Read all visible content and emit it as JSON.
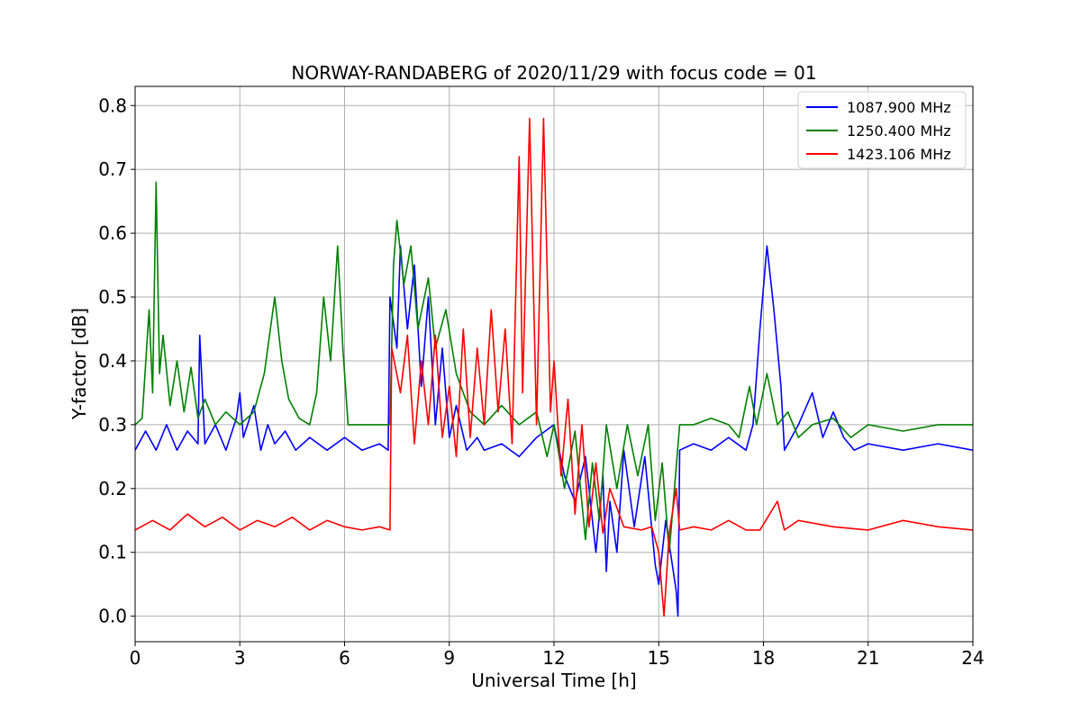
{
  "chart_data": {
    "type": "line",
    "title": "NORWAY-RANDABERG of 2020/11/29 with focus code = 01",
    "xlabel": "Universal Time [h]",
    "ylabel": "Y-factor [dB]",
    "xlim": [
      0,
      24
    ],
    "ylim": [
      -0.04,
      0.83
    ],
    "xticks": [
      0,
      3,
      6,
      9,
      12,
      15,
      18,
      21,
      24
    ],
    "yticks": [
      0.0,
      0.1,
      0.2,
      0.3,
      0.4,
      0.5,
      0.6,
      0.7,
      0.8
    ],
    "ytick_labels": [
      "0.0",
      "0.1",
      "0.2",
      "0.3",
      "0.4",
      "0.5",
      "0.6",
      "0.7",
      "0.8"
    ],
    "grid": true,
    "legend_position": "top-right",
    "series": [
      {
        "name": "1087.900 MHz",
        "color": "#0000ff",
        "points": [
          [
            0.0,
            0.26
          ],
          [
            0.3,
            0.29
          ],
          [
            0.6,
            0.26
          ],
          [
            0.9,
            0.3
          ],
          [
            1.2,
            0.26
          ],
          [
            1.5,
            0.29
          ],
          [
            1.8,
            0.27
          ],
          [
            1.85,
            0.44
          ],
          [
            2.0,
            0.27
          ],
          [
            2.3,
            0.3
          ],
          [
            2.6,
            0.26
          ],
          [
            2.9,
            0.31
          ],
          [
            3.0,
            0.35
          ],
          [
            3.1,
            0.28
          ],
          [
            3.4,
            0.33
          ],
          [
            3.6,
            0.26
          ],
          [
            3.8,
            0.3
          ],
          [
            4.0,
            0.27
          ],
          [
            4.3,
            0.29
          ],
          [
            4.6,
            0.26
          ],
          [
            5.0,
            0.28
          ],
          [
            5.5,
            0.26
          ],
          [
            6.0,
            0.28
          ],
          [
            6.5,
            0.26
          ],
          [
            7.0,
            0.27
          ],
          [
            7.25,
            0.26
          ],
          [
            7.3,
            0.5
          ],
          [
            7.5,
            0.42
          ],
          [
            7.6,
            0.58
          ],
          [
            7.8,
            0.45
          ],
          [
            8.0,
            0.55
          ],
          [
            8.2,
            0.36
          ],
          [
            8.4,
            0.5
          ],
          [
            8.6,
            0.3
          ],
          [
            8.8,
            0.42
          ],
          [
            9.0,
            0.28
          ],
          [
            9.2,
            0.33
          ],
          [
            9.5,
            0.26
          ],
          [
            9.8,
            0.28
          ],
          [
            10.0,
            0.26
          ],
          [
            10.5,
            0.27
          ],
          [
            11.0,
            0.25
          ],
          [
            11.5,
            0.28
          ],
          [
            12.0,
            0.3
          ],
          [
            12.3,
            0.22
          ],
          [
            12.6,
            0.18
          ],
          [
            12.9,
            0.25
          ],
          [
            13.2,
            0.1
          ],
          [
            13.4,
            0.22
          ],
          [
            13.5,
            0.07
          ],
          [
            13.6,
            0.18
          ],
          [
            13.8,
            0.1
          ],
          [
            14.0,
            0.26
          ],
          [
            14.3,
            0.14
          ],
          [
            14.6,
            0.25
          ],
          [
            14.9,
            0.08
          ],
          [
            15.0,
            0.05
          ],
          [
            15.2,
            0.15
          ],
          [
            15.5,
            0.04
          ],
          [
            15.55,
            0.0
          ],
          [
            15.6,
            0.26
          ],
          [
            16.0,
            0.27
          ],
          [
            16.5,
            0.26
          ],
          [
            17.0,
            0.28
          ],
          [
            17.5,
            0.26
          ],
          [
            17.7,
            0.3
          ],
          [
            17.9,
            0.45
          ],
          [
            18.1,
            0.58
          ],
          [
            18.3,
            0.48
          ],
          [
            18.5,
            0.36
          ],
          [
            18.6,
            0.26
          ],
          [
            19.0,
            0.3
          ],
          [
            19.4,
            0.35
          ],
          [
            19.7,
            0.28
          ],
          [
            20.0,
            0.32
          ],
          [
            20.3,
            0.28
          ],
          [
            20.6,
            0.26
          ],
          [
            21.0,
            0.27
          ],
          [
            22.0,
            0.26
          ],
          [
            23.0,
            0.27
          ],
          [
            24.0,
            0.26
          ]
        ]
      },
      {
        "name": "1250.400 MHz",
        "color": "#008000",
        "points": [
          [
            0.0,
            0.3
          ],
          [
            0.2,
            0.31
          ],
          [
            0.4,
            0.48
          ],
          [
            0.5,
            0.35
          ],
          [
            0.6,
            0.68
          ],
          [
            0.7,
            0.38
          ],
          [
            0.8,
            0.44
          ],
          [
            1.0,
            0.33
          ],
          [
            1.2,
            0.4
          ],
          [
            1.4,
            0.32
          ],
          [
            1.6,
            0.39
          ],
          [
            1.8,
            0.31
          ],
          [
            2.0,
            0.34
          ],
          [
            2.3,
            0.3
          ],
          [
            2.6,
            0.32
          ],
          [
            3.0,
            0.3
          ],
          [
            3.4,
            0.32
          ],
          [
            3.7,
            0.38
          ],
          [
            4.0,
            0.5
          ],
          [
            4.2,
            0.4
          ],
          [
            4.4,
            0.34
          ],
          [
            4.7,
            0.31
          ],
          [
            5.0,
            0.3
          ],
          [
            5.2,
            0.35
          ],
          [
            5.4,
            0.5
          ],
          [
            5.6,
            0.4
          ],
          [
            5.8,
            0.58
          ],
          [
            5.95,
            0.42
          ],
          [
            6.1,
            0.3
          ],
          [
            7.0,
            0.3
          ],
          [
            7.3,
            0.3
          ],
          [
            7.4,
            0.55
          ],
          [
            7.5,
            0.62
          ],
          [
            7.7,
            0.52
          ],
          [
            7.9,
            0.58
          ],
          [
            8.1,
            0.45
          ],
          [
            8.4,
            0.53
          ],
          [
            8.6,
            0.42
          ],
          [
            8.9,
            0.48
          ],
          [
            9.2,
            0.38
          ],
          [
            9.6,
            0.32
          ],
          [
            10.0,
            0.3
          ],
          [
            10.5,
            0.33
          ],
          [
            11.0,
            0.3
          ],
          [
            11.5,
            0.32
          ],
          [
            11.8,
            0.25
          ],
          [
            12.0,
            0.3
          ],
          [
            12.3,
            0.2
          ],
          [
            12.6,
            0.29
          ],
          [
            12.9,
            0.12
          ],
          [
            13.1,
            0.24
          ],
          [
            13.3,
            0.15
          ],
          [
            13.5,
            0.3
          ],
          [
            13.8,
            0.2
          ],
          [
            14.1,
            0.3
          ],
          [
            14.4,
            0.22
          ],
          [
            14.7,
            0.3
          ],
          [
            14.9,
            0.15
          ],
          [
            15.1,
            0.24
          ],
          [
            15.3,
            0.1
          ],
          [
            15.6,
            0.3
          ],
          [
            16.0,
            0.3
          ],
          [
            16.5,
            0.31
          ],
          [
            17.0,
            0.3
          ],
          [
            17.3,
            0.28
          ],
          [
            17.6,
            0.36
          ],
          [
            17.8,
            0.3
          ],
          [
            18.1,
            0.38
          ],
          [
            18.4,
            0.3
          ],
          [
            18.7,
            0.32
          ],
          [
            19.0,
            0.28
          ],
          [
            19.4,
            0.3
          ],
          [
            20.0,
            0.31
          ],
          [
            20.5,
            0.28
          ],
          [
            21.0,
            0.3
          ],
          [
            22.0,
            0.29
          ],
          [
            23.0,
            0.3
          ],
          [
            24.0,
            0.3
          ]
        ]
      },
      {
        "name": "1423.106 MHz",
        "color": "#ff0000",
        "points": [
          [
            0.0,
            0.135
          ],
          [
            0.5,
            0.15
          ],
          [
            1.0,
            0.135
          ],
          [
            1.5,
            0.16
          ],
          [
            2.0,
            0.14
          ],
          [
            2.5,
            0.155
          ],
          [
            3.0,
            0.135
          ],
          [
            3.5,
            0.15
          ],
          [
            4.0,
            0.14
          ],
          [
            4.5,
            0.155
          ],
          [
            5.0,
            0.135
          ],
          [
            5.5,
            0.15
          ],
          [
            6.0,
            0.14
          ],
          [
            6.5,
            0.135
          ],
          [
            7.0,
            0.14
          ],
          [
            7.3,
            0.135
          ],
          [
            7.35,
            0.42
          ],
          [
            7.6,
            0.35
          ],
          [
            7.8,
            0.44
          ],
          [
            8.0,
            0.27
          ],
          [
            8.2,
            0.4
          ],
          [
            8.4,
            0.3
          ],
          [
            8.6,
            0.44
          ],
          [
            8.8,
            0.28
          ],
          [
            9.0,
            0.36
          ],
          [
            9.2,
            0.25
          ],
          [
            9.4,
            0.45
          ],
          [
            9.6,
            0.28
          ],
          [
            9.8,
            0.42
          ],
          [
            10.0,
            0.3
          ],
          [
            10.2,
            0.48
          ],
          [
            10.4,
            0.32
          ],
          [
            10.6,
            0.45
          ],
          [
            10.8,
            0.27
          ],
          [
            11.0,
            0.72
          ],
          [
            11.1,
            0.35
          ],
          [
            11.3,
            0.78
          ],
          [
            11.5,
            0.3
          ],
          [
            11.7,
            0.78
          ],
          [
            11.9,
            0.32
          ],
          [
            12.0,
            0.4
          ],
          [
            12.2,
            0.22
          ],
          [
            12.4,
            0.34
          ],
          [
            12.6,
            0.16
          ],
          [
            12.8,
            0.3
          ],
          [
            13.0,
            0.14
          ],
          [
            13.2,
            0.24
          ],
          [
            13.4,
            0.13
          ],
          [
            13.6,
            0.2
          ],
          [
            14.0,
            0.14
          ],
          [
            14.5,
            0.135
          ],
          [
            14.8,
            0.14
          ],
          [
            15.0,
            0.1
          ],
          [
            15.15,
            0.0
          ],
          [
            15.3,
            0.13
          ],
          [
            15.5,
            0.2
          ],
          [
            15.6,
            0.135
          ],
          [
            16.0,
            0.14
          ],
          [
            16.5,
            0.135
          ],
          [
            17.0,
            0.15
          ],
          [
            17.5,
            0.135
          ],
          [
            17.9,
            0.135
          ],
          [
            18.4,
            0.18
          ],
          [
            18.6,
            0.135
          ],
          [
            19.0,
            0.15
          ],
          [
            20.0,
            0.14
          ],
          [
            21.0,
            0.135
          ],
          [
            22.0,
            0.15
          ],
          [
            23.0,
            0.14
          ],
          [
            24.0,
            0.135
          ]
        ]
      }
    ]
  }
}
